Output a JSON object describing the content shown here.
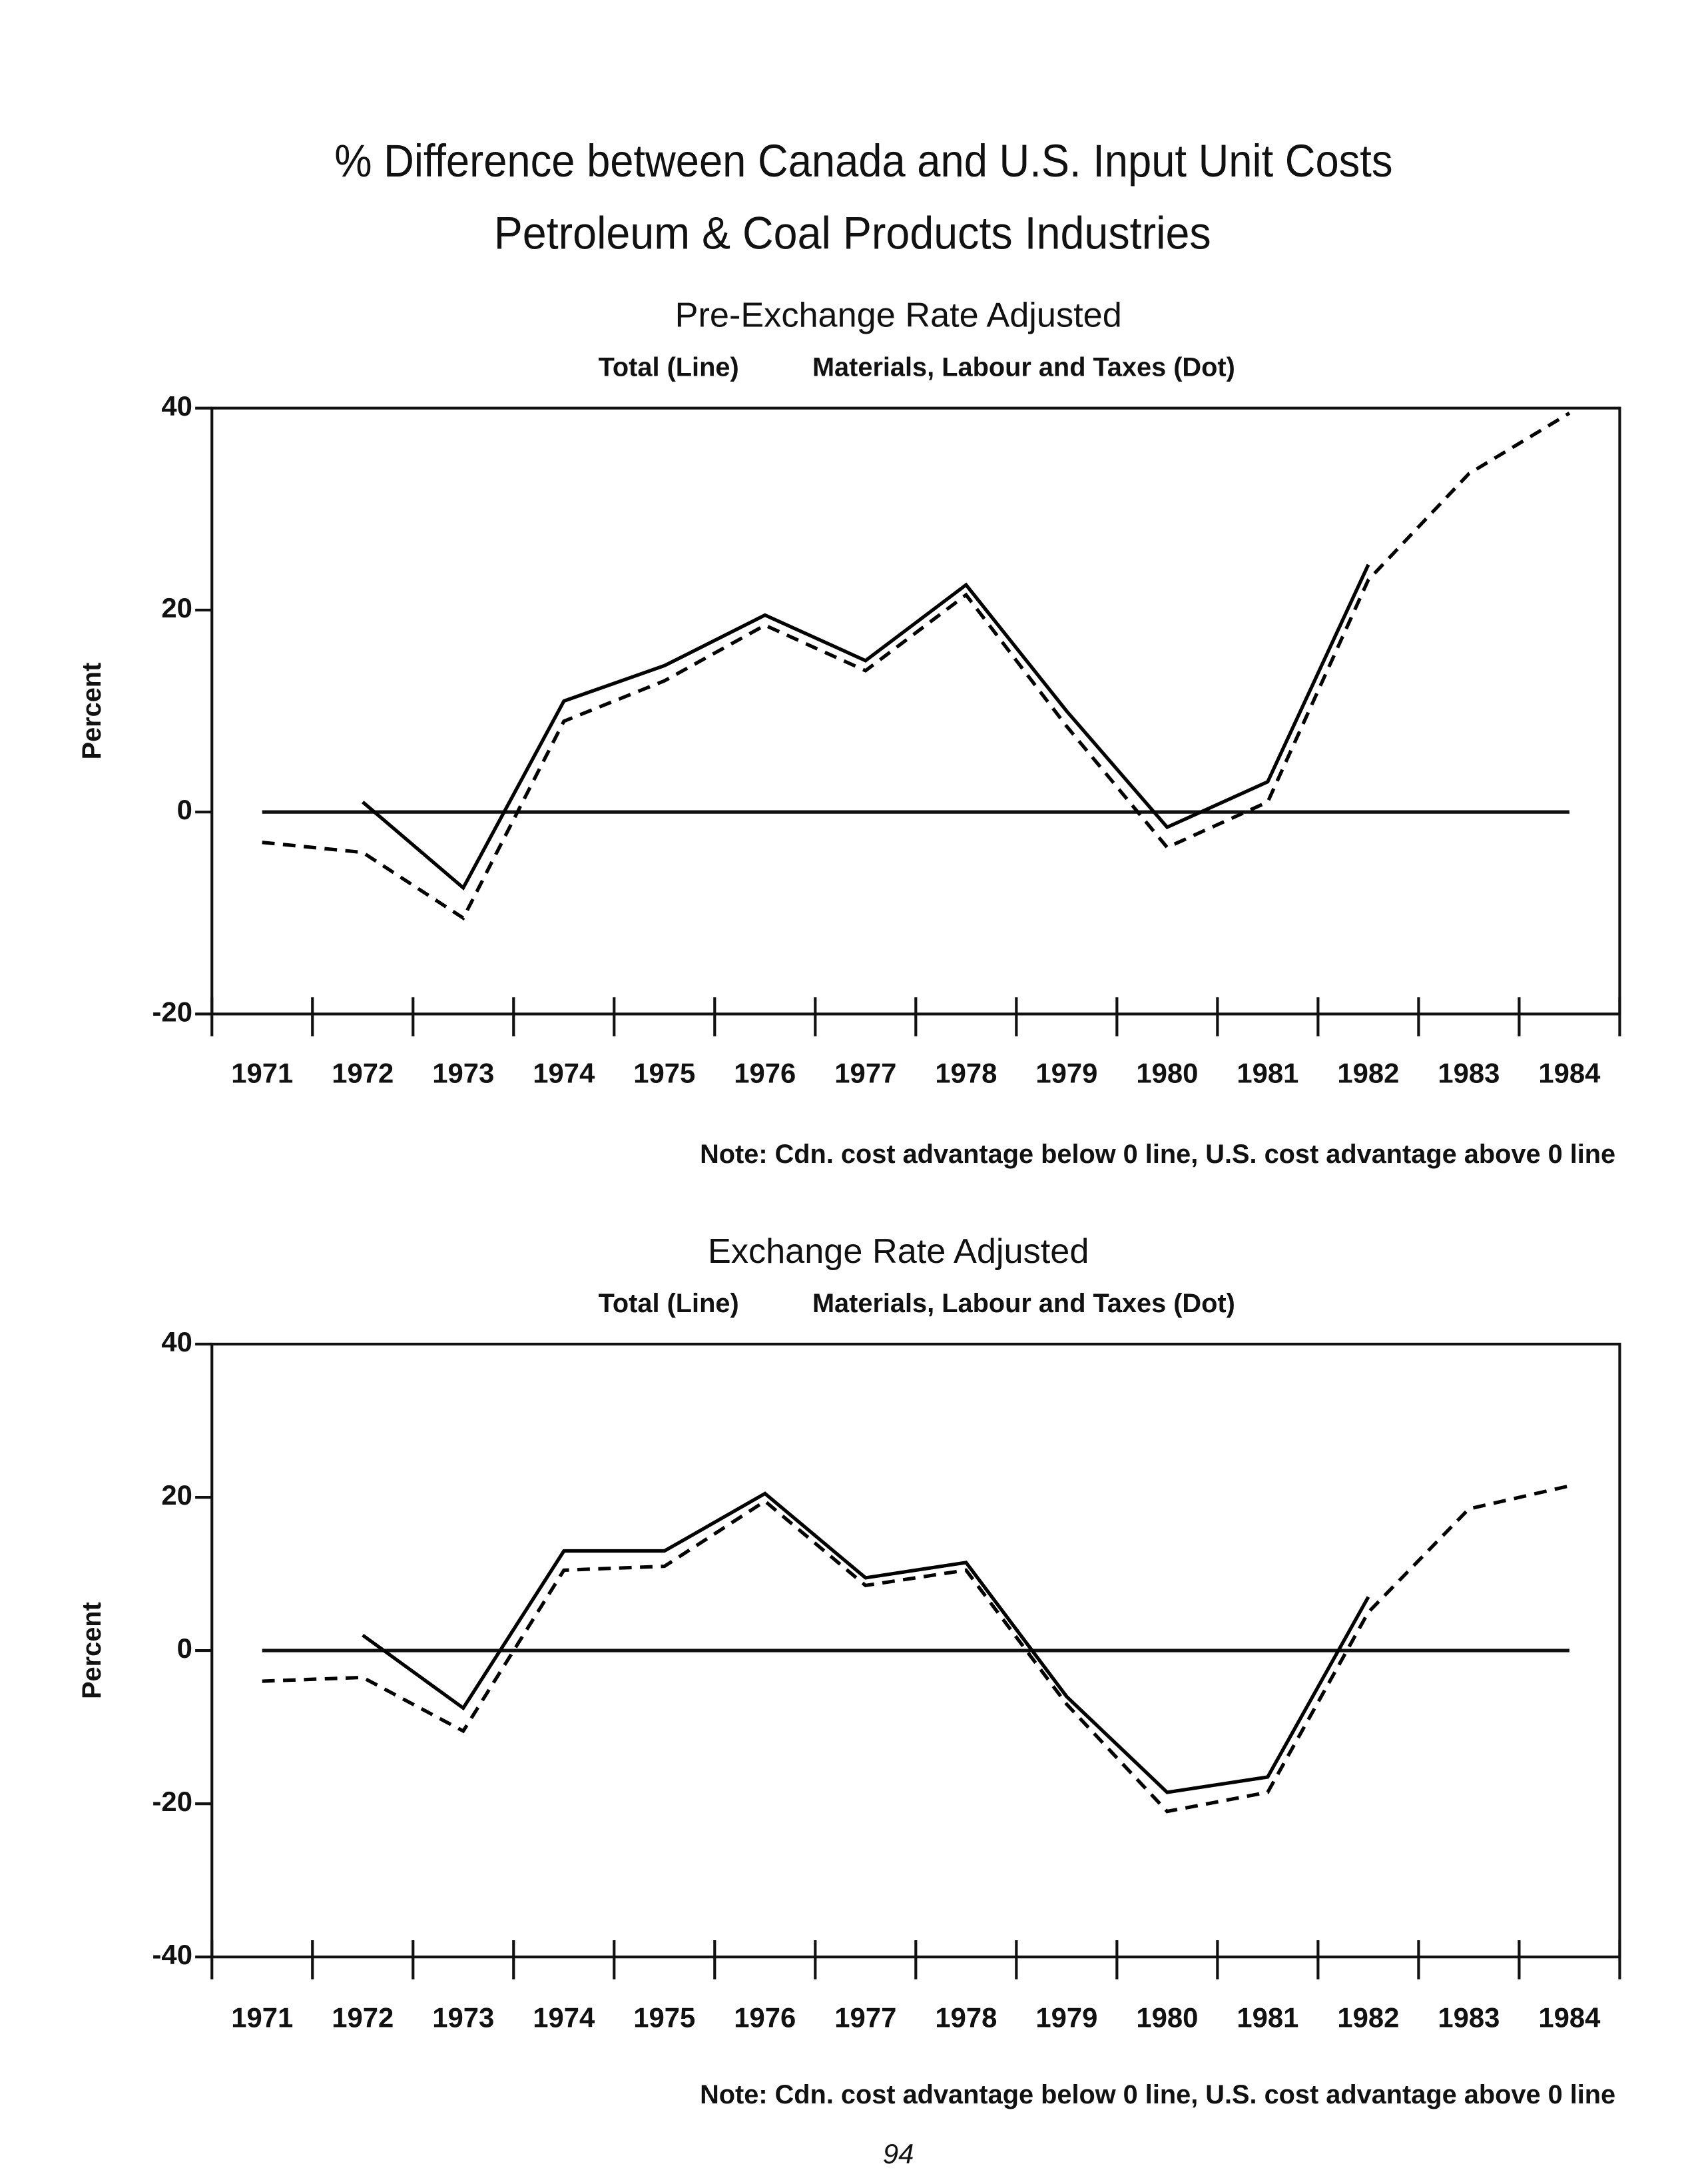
{
  "page": {
    "title": [
      "% Difference between Canada and U.S. Input Unit Costs",
      "Petroleum & Coal Products Industries"
    ],
    "page_number": "94"
  },
  "chart_data": [
    {
      "type": "line",
      "title": "Pre-Exchange Rate Adjusted",
      "y_label": "Percent",
      "note": "Note: Cdn. cost advantage below 0 line, U.S. cost advantage above 0 line",
      "categories": [
        "1971",
        "1972",
        "1973",
        "1974",
        "1975",
        "1976",
        "1977",
        "1978",
        "1979",
        "1980",
        "1981",
        "1982",
        "1983",
        "1984"
      ],
      "series": [
        {
          "name": "Total (Line)",
          "color": "#000000",
          "style": "solid",
          "values": [
            null,
            1,
            -7.5,
            11,
            14.5,
            19.5,
            15,
            22.5,
            10,
            -1.5,
            3,
            24.5,
            null,
            null
          ]
        },
        {
          "name": "Materials, Labour and Taxes (Dot)",
          "color": "#000000",
          "style": "dashed",
          "values": [
            -3,
            -4,
            -10.5,
            9,
            13,
            18.5,
            14,
            21.5,
            8.5,
            -3.5,
            1,
            23,
            33.5,
            39.5
          ]
        }
      ],
      "ylim": [
        -20,
        40
      ],
      "yticks": [
        -20,
        0,
        20,
        40
      ],
      "grid": false
    },
    {
      "type": "line",
      "title": "Exchange Rate Adjusted",
      "y_label": "Percent",
      "note": "Note: Cdn. cost advantage below 0 line, U.S. cost advantage above 0 line",
      "categories": [
        "1971",
        "1972",
        "1973",
        "1974",
        "1975",
        "1976",
        "1977",
        "1978",
        "1979",
        "1980",
        "1981",
        "1982",
        "1983",
        "1984"
      ],
      "series": [
        {
          "name": "Total (Line)",
          "color": "#000000",
          "style": "solid",
          "values": [
            null,
            2,
            -7.5,
            13,
            13,
            20.5,
            9.5,
            11.5,
            -6,
            -18.5,
            -16.5,
            7,
            null,
            null
          ]
        },
        {
          "name": "Materials, Labour and Taxes (Dot)",
          "color": "#000000",
          "style": "dashed",
          "values": [
            -4,
            -3.5,
            -10.5,
            10.5,
            11,
            19.5,
            8.5,
            10.5,
            -7,
            -21,
            -18.5,
            5,
            18.5,
            21.5
          ]
        }
      ],
      "ylim": [
        -40,
        40
      ],
      "yticks": [
        -40,
        -20,
        0,
        20,
        40
      ],
      "grid": false
    }
  ]
}
